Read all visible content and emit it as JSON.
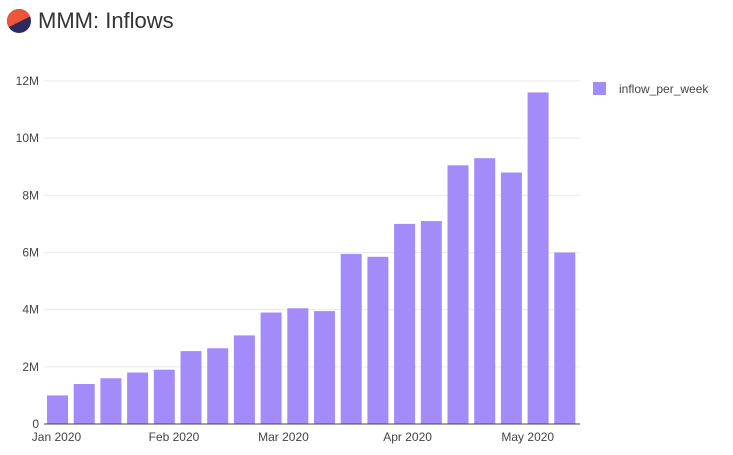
{
  "header": {
    "title": "MMM: Inflows",
    "logo_colors": {
      "top": "#EF553B",
      "bottom": "#2E2A5E"
    }
  },
  "chart_data": {
    "type": "bar",
    "title": "MMM: Inflows",
    "xlabel": "",
    "ylabel": "",
    "ylim": [
      0,
      12000000
    ],
    "yticks": [
      0,
      2000000,
      4000000,
      6000000,
      8000000,
      10000000,
      12000000
    ],
    "ytick_labels": [
      "0",
      "2M",
      "4M",
      "6M",
      "8M",
      "10M",
      "12M"
    ],
    "xtick_labels": [
      "Jan 2020",
      "Feb 2020",
      "Mar 2020",
      "Apr 2020",
      "May 2020"
    ],
    "xtick_positions": [
      0,
      4.4,
      8.5,
      13.15,
      17.65
    ],
    "legend_position": "top-right",
    "grid": true,
    "bar_color": "#A48BFA",
    "series": [
      {
        "name": "inflow_per_week",
        "values": [
          1000000,
          1400000,
          1600000,
          1800000,
          1900000,
          2550000,
          2650000,
          3100000,
          3900000,
          4050000,
          3950000,
          5950000,
          5850000,
          7000000,
          7100000,
          9050000,
          9300000,
          8800000,
          11600000,
          6000000
        ]
      }
    ]
  }
}
